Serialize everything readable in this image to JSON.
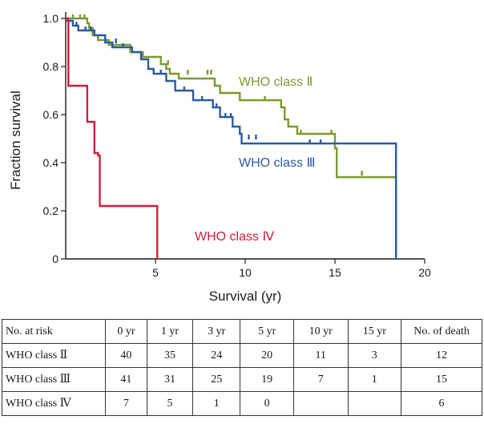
{
  "chart_data": {
    "type": "line",
    "subtype": "kaplan-meier step",
    "title": "",
    "xlabel": "Survival (yr)",
    "ylabel": "Fraction survival",
    "xlim": [
      0,
      20
    ],
    "ylim": [
      0,
      1.0
    ],
    "xticks": [
      "5",
      "10",
      "15",
      "20"
    ],
    "yticks": [
      "0",
      "0.2",
      "0.4",
      "0.6",
      "0.8",
      "1.0"
    ],
    "grid": false,
    "series": [
      {
        "name": "WHO class Ⅱ",
        "color": "#7a9a2e",
        "steps": [
          [
            0,
            1.0
          ],
          [
            1.2,
            0.98
          ],
          [
            1.3,
            0.96
          ],
          [
            1.5,
            0.93
          ],
          [
            1.8,
            0.91
          ],
          [
            2.4,
            0.89
          ],
          [
            3.6,
            0.86
          ],
          [
            4.3,
            0.84
          ],
          [
            5.3,
            0.81
          ],
          [
            5.6,
            0.79
          ],
          [
            5.8,
            0.77
          ],
          [
            6.3,
            0.75
          ],
          [
            8.3,
            0.72
          ],
          [
            8.6,
            0.69
          ],
          [
            9.7,
            0.66
          ],
          [
            12.0,
            0.63
          ],
          [
            12.2,
            0.58
          ],
          [
            12.4,
            0.55
          ],
          [
            12.9,
            0.52
          ],
          [
            15.0,
            0.46
          ],
          [
            15.1,
            0.34
          ],
          [
            18.4,
            0.0
          ]
        ],
        "censored": [
          [
            0.4,
            1.0
          ],
          [
            0.8,
            1.0
          ],
          [
            1.05,
            1.0
          ],
          [
            5.7,
            0.81
          ],
          [
            6.8,
            0.77
          ],
          [
            7.9,
            0.77
          ],
          [
            8.1,
            0.77
          ],
          [
            11.1,
            0.66
          ],
          [
            13.1,
            0.52
          ],
          [
            14.8,
            0.52
          ],
          [
            16.5,
            0.35
          ]
        ]
      },
      {
        "name": "WHO class Ⅲ",
        "color": "#2a5b9f",
        "steps": [
          [
            0,
            0.99
          ],
          [
            0.4,
            0.97
          ],
          [
            0.7,
            0.95
          ],
          [
            1.6,
            0.93
          ],
          [
            2.2,
            0.9
          ],
          [
            2.6,
            0.88
          ],
          [
            3.7,
            0.86
          ],
          [
            4.2,
            0.83
          ],
          [
            4.6,
            0.79
          ],
          [
            4.9,
            0.77
          ],
          [
            5.6,
            0.74
          ],
          [
            6.1,
            0.7
          ],
          [
            7.1,
            0.66
          ],
          [
            8.2,
            0.63
          ],
          [
            8.6,
            0.59
          ],
          [
            9.3,
            0.55
          ],
          [
            9.7,
            0.52
          ],
          [
            9.8,
            0.48
          ],
          [
            18.4,
            0.0
          ]
        ],
        "censored": [
          [
            0.6,
            0.97
          ],
          [
            1.1,
            0.95
          ],
          [
            1.4,
            0.95
          ],
          [
            2.8,
            0.9
          ],
          [
            3.2,
            0.88
          ],
          [
            5.3,
            0.77
          ],
          [
            6.6,
            0.7
          ],
          [
            7.6,
            0.66
          ],
          [
            8.4,
            0.63
          ],
          [
            8.9,
            0.59
          ],
          [
            9.2,
            0.59
          ],
          [
            10.2,
            0.5
          ],
          [
            10.6,
            0.5
          ],
          [
            13.6,
            0.48
          ],
          [
            14.2,
            0.48
          ]
        ]
      },
      {
        "name": "WHO class Ⅳ",
        "color": "#cc1f3c",
        "steps": [
          [
            0,
            1.0
          ],
          [
            0.15,
            0.72
          ],
          [
            1.2,
            0.57
          ],
          [
            1.6,
            0.44
          ],
          [
            1.8,
            0.43
          ],
          [
            1.9,
            0.22
          ],
          [
            5.1,
            0.0
          ]
        ],
        "censored": []
      }
    ]
  },
  "table": {
    "headers": [
      "No. at risk",
      "0 yr",
      "1 yr",
      "3 yr",
      "5 yr",
      "10 yr",
      "15 yr",
      "No. of death"
    ],
    "rows": [
      {
        "label": "WHO class Ⅱ",
        "values": [
          "40",
          "35",
          "24",
          "20",
          "11",
          "3",
          "12"
        ]
      },
      {
        "label": "WHO class Ⅲ",
        "values": [
          "41",
          "31",
          "25",
          "19",
          "7",
          "1",
          "15"
        ]
      },
      {
        "label": "WHO class Ⅳ",
        "values": [
          "7",
          "5",
          "1",
          "0",
          "",
          "",
          "6"
        ]
      }
    ]
  }
}
